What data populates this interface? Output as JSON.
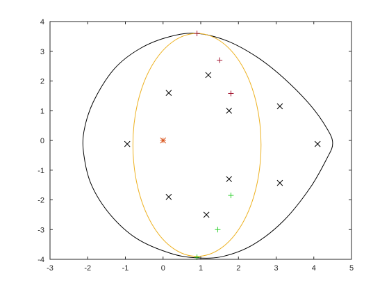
{
  "chart_data": {
    "type": "scatter",
    "title": "",
    "xlabel": "",
    "ylabel": "",
    "xlim": [
      -3,
      5
    ],
    "ylim": [
      -4,
      4
    ],
    "xticks": [
      "-3",
      "-2",
      "-1",
      "0",
      "1",
      "2",
      "3",
      "4",
      "5"
    ],
    "yticks": [
      "-4",
      "-3",
      "-2",
      "-1",
      "0",
      "1",
      "2",
      "3",
      "4"
    ],
    "grid": false,
    "legend": "none",
    "boundaries": [
      {
        "kind": "closed-curve",
        "color": "#000000",
        "points": [
          [
            0.9,
            3.6
          ],
          [
            0.2,
            3.5
          ],
          [
            -0.6,
            3.1
          ],
          [
            -1.3,
            2.4
          ],
          [
            -1.85,
            1.3
          ],
          [
            -2.1,
            0.3
          ],
          [
            -2.1,
            -0.5
          ],
          [
            -1.9,
            -1.5
          ],
          [
            -1.4,
            -2.5
          ],
          [
            -0.7,
            -3.3
          ],
          [
            0.2,
            -3.8
          ],
          [
            0.9,
            -3.95
          ],
          [
            1.6,
            -3.9
          ],
          [
            2.4,
            -3.5
          ],
          [
            3.2,
            -2.7
          ],
          [
            3.9,
            -1.6
          ],
          [
            4.35,
            -0.6
          ],
          [
            4.5,
            -0.1
          ],
          [
            4.35,
            0.4
          ],
          [
            3.9,
            1.2
          ],
          [
            3.2,
            2.1
          ],
          [
            2.5,
            2.8
          ],
          [
            1.7,
            3.35
          ],
          [
            0.9,
            3.6
          ]
        ]
      },
      {
        "kind": "ellipse",
        "color": "#edb120",
        "center": [
          0.9,
          -0.15
        ],
        "rx": 1.7,
        "ry": 3.75
      }
    ],
    "series": [
      {
        "marker": "x",
        "color": "#000000",
        "points": [
          [
            -0.95,
            -0.12
          ],
          [
            0.15,
            1.6
          ],
          [
            0.15,
            -1.9
          ],
          [
            1.2,
            2.2
          ],
          [
            1.15,
            -2.5
          ],
          [
            1.75,
            1.0
          ],
          [
            1.75,
            -1.3
          ],
          [
            3.1,
            1.15
          ],
          [
            3.1,
            -1.43
          ],
          [
            4.1,
            -0.12
          ]
        ]
      },
      {
        "marker": "+",
        "color": "#a2142f",
        "points": [
          [
            0.9,
            3.6
          ],
          [
            1.5,
            2.7
          ],
          [
            1.8,
            1.58
          ]
        ]
      },
      {
        "marker": "+",
        "color": "#2fd12f",
        "points": [
          [
            1.8,
            -1.85
          ],
          [
            1.45,
            -3.0
          ],
          [
            0.9,
            -3.93
          ]
        ]
      },
      {
        "marker": "*",
        "color": "#d95319",
        "points": [
          [
            0.0,
            0.0
          ]
        ]
      }
    ]
  }
}
